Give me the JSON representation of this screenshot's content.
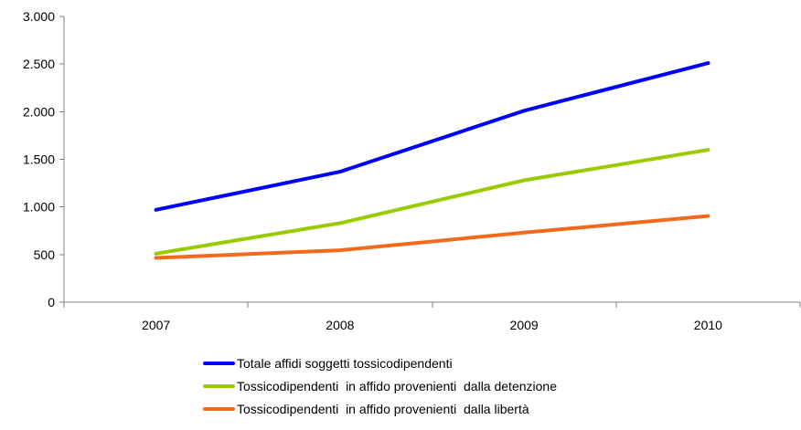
{
  "chart_data": {
    "type": "line",
    "title": "",
    "xlabel": "",
    "ylabel": "",
    "categories": [
      "2007",
      "2008",
      "2009",
      "2010"
    ],
    "ylim": [
      0,
      3000
    ],
    "yticks": [
      0,
      500,
      1000,
      1500,
      2000,
      2500,
      3000
    ],
    "ytick_labels": [
      "0",
      "500",
      "1.000",
      "1.500",
      "2.000",
      "2.500",
      "3.000"
    ],
    "grid": false,
    "legend_position": "bottom",
    "series": [
      {
        "name": "Totale affidi soggetti tossicodipendenti",
        "color": "#0000ff",
        "values": [
          970,
          1370,
          2010,
          2510
        ]
      },
      {
        "name": "Tossicodipendenti  in affido provenienti  dalla detenzione",
        "color": "#99cc00",
        "values": [
          510,
          830,
          1280,
          1600
        ]
      },
      {
        "name": "Tossicodipendenti  in affido provenienti  dalla libertà",
        "color": "#f26b1d",
        "values": [
          465,
          545,
          730,
          905
        ]
      }
    ]
  }
}
